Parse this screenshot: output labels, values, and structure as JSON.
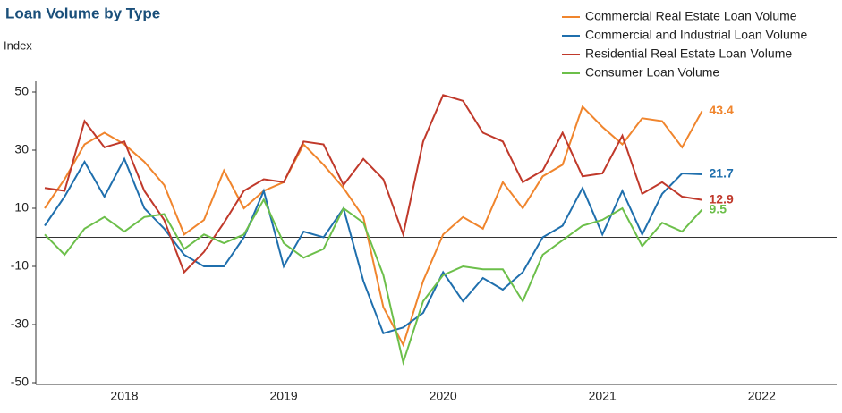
{
  "chart_data": {
    "type": "line",
    "title": "Loan Volume by Type",
    "y_label": "Index",
    "x": [
      2018,
      2018.125,
      2018.25,
      2018.375,
      2018.5,
      2018.625,
      2018.75,
      2018.875,
      2019,
      2019.125,
      2019.25,
      2019.375,
      2019.5,
      2019.625,
      2019.75,
      2019.875,
      2020,
      2020.125,
      2020.25,
      2020.375,
      2020.5,
      2020.625,
      2020.75,
      2020.875,
      2021,
      2021.125,
      2021.25,
      2021.375,
      2021.5,
      2021.625,
      2021.75,
      2021.875,
      2022,
      2022.125
    ],
    "series": [
      {
        "name": "Commercial Real Estate Loan Volume",
        "color": "#f0852d",
        "values": [
          10,
          20,
          32,
          36,
          32,
          26,
          18,
          1,
          6,
          23,
          10,
          16,
          19,
          32,
          25,
          17,
          7,
          -24,
          -37,
          -15,
          1,
          7,
          3,
          19,
          10,
          21,
          25,
          45,
          38,
          32,
          41,
          40,
          31,
          43.4
        ]
      },
      {
        "name": "Commercial and Industrial Loan Volume",
        "color": "#1f6fad",
        "values": [
          4,
          14,
          26,
          14,
          27,
          10,
          3,
          -6,
          -10,
          -10,
          0,
          16,
          -10,
          2,
          0,
          10,
          -15,
          -33,
          -31,
          -26,
          -12,
          -22,
          -14,
          -18,
          -12,
          0,
          4,
          17,
          1,
          16,
          1,
          15,
          22,
          21.7
        ]
      },
      {
        "name": "Residential Real Estate Loan Volume",
        "color": "#c0392b",
        "values": [
          17,
          16,
          40,
          31,
          33,
          16,
          6,
          -12,
          -5,
          5,
          16,
          20,
          19,
          33,
          32,
          18,
          27,
          20,
          1,
          33,
          49,
          47,
          36,
          33,
          19,
          23,
          36,
          21,
          22,
          35,
          15,
          19,
          14,
          12.9
        ]
      },
      {
        "name": "Consumer Loan Volume",
        "color": "#6cbf4a",
        "values": [
          1,
          -6,
          3,
          7,
          2,
          7,
          8,
          -4,
          1,
          -2,
          1,
          13,
          -2,
          -7,
          -4,
          10,
          5,
          -13,
          -43,
          -22,
          -13,
          -10,
          -11,
          -11,
          -22,
          -6,
          -1,
          4,
          6,
          10,
          -3,
          5,
          2,
          9.5
        ]
      }
    ],
    "xlim": [
      2017.944,
      2022.97
    ],
    "xticks": [
      {
        "value": 2018.5,
        "label": "2018"
      },
      {
        "value": 2019.5,
        "label": "2019"
      },
      {
        "value": 2020.5,
        "label": "2020"
      },
      {
        "value": 2021.5,
        "label": "2021"
      },
      {
        "value": 2022.5,
        "label": "2022"
      }
    ],
    "ylim": [
      -50,
      50
    ],
    "yticks": [
      -50,
      -30,
      -10,
      10,
      30,
      50
    ],
    "legend": "top-right"
  }
}
